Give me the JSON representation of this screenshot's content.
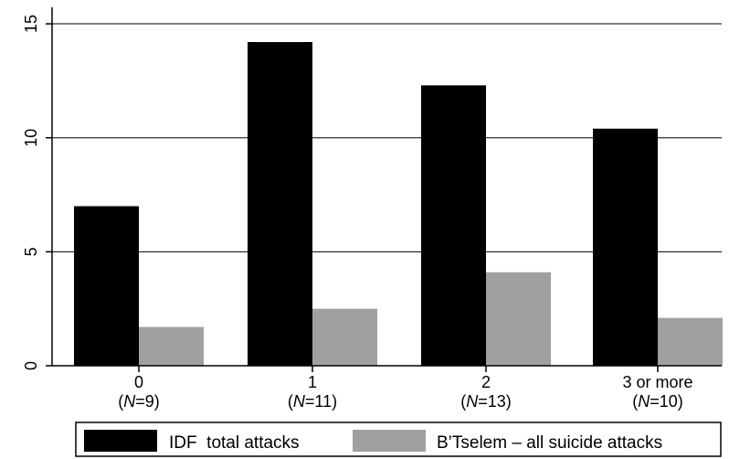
{
  "chart_data": {
    "type": "bar",
    "categories": [
      "0",
      "1",
      "2",
      "3 or more"
    ],
    "category_sublabels": [
      "9",
      "11",
      "13",
      "10"
    ],
    "sublabel_prefix": "N",
    "series": [
      {
        "name": "IDF  total attacks",
        "values": [
          7.0,
          14.2,
          12.3,
          10.4
        ],
        "color": "#000000"
      },
      {
        "name": "B’Tselem – all suicide attacks",
        "values": [
          1.7,
          2.5,
          4.1,
          2.1
        ],
        "color": "#a0a0a0"
      }
    ],
    "y_ticks": [
      0,
      5,
      10,
      15
    ],
    "ylim": [
      0,
      16
    ],
    "grid": true,
    "legend_position": "bottom"
  }
}
